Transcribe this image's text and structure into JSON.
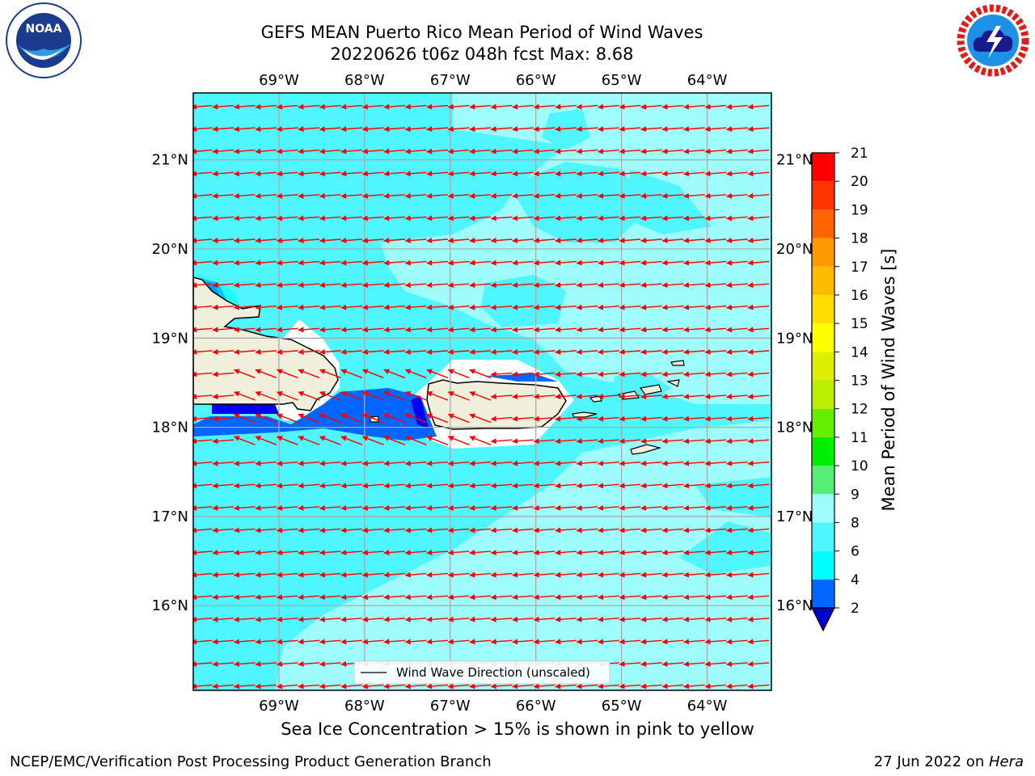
{
  "title": {
    "line1": "GEFS MEAN Puerto Rico Mean Period of Wind Waves",
    "line2": "20220626 t06z 048h fcst   Max: 8.68"
  },
  "logos": {
    "left": {
      "name": "noaa-logo",
      "text": "NOAA",
      "ring_text": "NATIONAL OCEANIC AND ATMOSPHERIC ADMINISTRATION · U.S. DEPARTMENT OF COMMERCE"
    },
    "right": {
      "name": "nws-logo",
      "ring_text": "NATIONAL WEATHER SERVICE"
    }
  },
  "map": {
    "lon_labels": [
      "69°W",
      "68°W",
      "67°W",
      "66°W",
      "65°W",
      "64°W"
    ],
    "lat_labels": [
      "21°N",
      "20°N",
      "19°N",
      "18°N",
      "17°N",
      "16°N"
    ],
    "lon_ticks": [
      -69,
      -68,
      -67,
      -66,
      -65,
      -64
    ],
    "lat_ticks": [
      21,
      20,
      19,
      18,
      17,
      16
    ],
    "extent": {
      "lon": [
        -70,
        -63.25
      ],
      "lat": [
        15.05,
        21.75
      ]
    },
    "legend_label": "Wind Wave Direction (unscaled)",
    "arrow_color": "#ff0000",
    "land_color": "#efefdc",
    "grid": true,
    "vector_field": {
      "lon_step": 0.25,
      "lat_step": 0.25,
      "direction": "westward"
    }
  },
  "colorbar": {
    "label": "Mean Period of Wind Waves [s]",
    "tick_labels": [
      "2",
      "4",
      "6",
      "8",
      "9",
      "10",
      "11",
      "12",
      "13",
      "14",
      "15",
      "16",
      "17",
      "18",
      "19",
      "20",
      "21"
    ],
    "levels": [
      2,
      4,
      6,
      8,
      9,
      10,
      11,
      12,
      13,
      14,
      15,
      16,
      17,
      18,
      19,
      20,
      21
    ],
    "colors": [
      "#0000ee",
      "#0066ff",
      "#00ffff",
      "#4ff5ff",
      "#9efcfc",
      "#55ee77",
      "#00ee00",
      "#66ee00",
      "#bbee00",
      "#ddee00",
      "#ffff00",
      "#ffdd00",
      "#ffbb00",
      "#ff9900",
      "#ff6600",
      "#ff3300",
      "#ff0000"
    ],
    "extend_color": "#0000cc"
  },
  "caption": "Sea Ice Concentration > 15% is shown in pink to yellow",
  "footer": {
    "left": "NCEP/EMC/Verification Post Processing Product Generation Branch",
    "right_prefix": "27 Jun 2022 on ",
    "right_machine": "Hera"
  }
}
